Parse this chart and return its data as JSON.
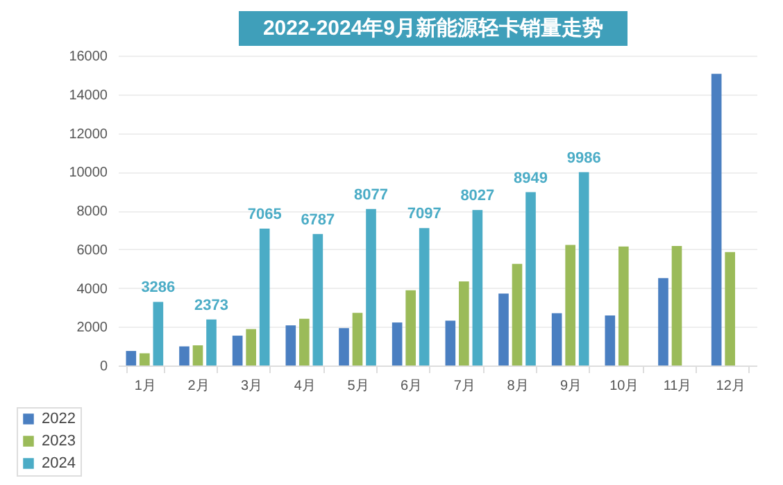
{
  "chart_data": {
    "type": "bar",
    "title": "2022-2024年9月新能源轻卡销量走势",
    "categories": [
      "1月",
      "2月",
      "3月",
      "4月",
      "5月",
      "6月",
      "7月",
      "8月",
      "9月",
      "10月",
      "11月",
      "12月"
    ],
    "series": [
      {
        "name": "2022",
        "color": "#4a7fc1",
        "values": [
          750,
          990,
          1540,
          2070,
          1930,
          2220,
          2310,
          3710,
          2700,
          2580,
          4510,
          15060
        ]
      },
      {
        "name": "2023",
        "color": "#9bbb59",
        "values": [
          630,
          1040,
          1880,
          2410,
          2720,
          3880,
          4340,
          5250,
          6220,
          6140,
          6170,
          5860
        ]
      },
      {
        "name": "2024",
        "color": "#4bacc6",
        "values": [
          3286,
          2373,
          7065,
          6787,
          8077,
          7097,
          8027,
          8949,
          9986,
          null,
          null,
          null
        ],
        "value_labels": [
          "3286",
          "2373",
          "7065",
          "6787",
          "8077",
          "7097",
          "8027",
          "8949",
          "9986",
          null,
          null,
          null
        ]
      }
    ],
    "ylim": [
      0,
      16000
    ],
    "yticks": [
      0,
      2000,
      4000,
      6000,
      8000,
      10000,
      12000,
      14000,
      16000
    ],
    "grid": "y",
    "legend": "bottom left"
  }
}
